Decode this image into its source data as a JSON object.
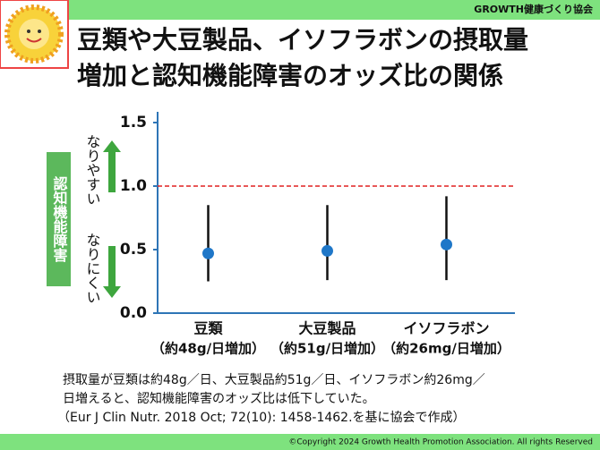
{
  "header": {
    "org": "GROWTH健康づくり協会"
  },
  "chart_data": {
    "type": "errorbar",
    "title": [
      "豆類や大豆製品、イソフラボンの摂取量",
      "増加と認知機能障害のオッズ比の関係"
    ],
    "ylabel": "認知機能障害",
    "annotations": {
      "up": "なりやすい",
      "down": "なりにくい"
    },
    "categories": [
      "豆類",
      "大豆製品",
      "イソフラボン"
    ],
    "category_notes": [
      "（約48g/日増加）",
      "（約51g/日増加）",
      "（約26mg/日増加）"
    ],
    "values": [
      0.47,
      0.49,
      0.54
    ],
    "lower": [
      0.25,
      0.26,
      0.26
    ],
    "upper": [
      0.85,
      0.85,
      0.92
    ],
    "color": "#1f77c8",
    "ylim": [
      0,
      1.5
    ],
    "yticks": [
      {
        "value": 0,
        "label": "0.0"
      },
      0.5,
      {
        "value": 1,
        "label": "1.0"
      },
      1.5
    ],
    "reference_line": 1,
    "reference_color": "#e02020"
  },
  "footnote": [
    "摂取量が豆類は約48g／日、大豆製品約51g／日、イソフラボン約26mg／",
    "日増えると、認知機能障害のオッズ比は低下していた。",
    "（Eur J Clin Nutr. 2018 Oct; 72(10): 1458-1462.を基に協会で作成）"
  ],
  "footer": {
    "copyright": "©Copyright 2024 Growth Health Promotion Association. All rights Reserved"
  }
}
